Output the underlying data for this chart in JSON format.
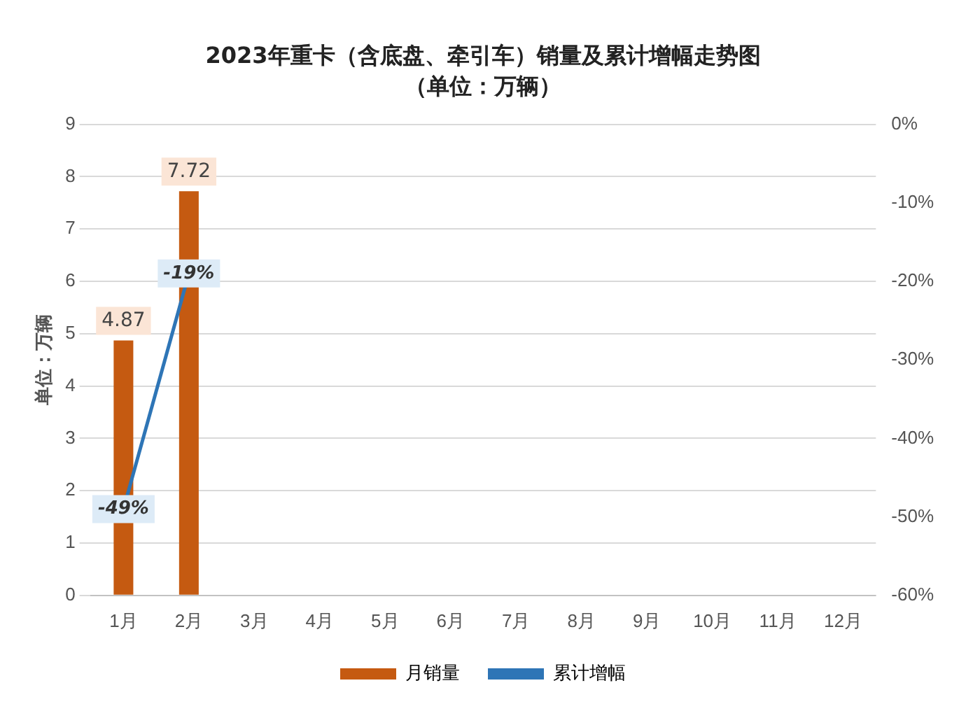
{
  "chart_data": {
    "type": "bar",
    "title": "2023年重卡（含底盘、牵引车）销量及累计增幅走势图",
    "subtitle": "（单位：万辆）",
    "ylabel": "单位：万辆",
    "categories": [
      "1月",
      "2月",
      "3月",
      "4月",
      "5月",
      "6月",
      "7月",
      "8月",
      "9月",
      "10月",
      "11月",
      "12月"
    ],
    "series": [
      {
        "name": "月销量",
        "color": "#c55a11",
        "values": [
          4.87,
          7.72,
          null,
          null,
          null,
          null,
          null,
          null,
          null,
          null,
          null,
          null
        ],
        "value_labels": [
          "4.87",
          "7.72",
          null,
          null,
          null,
          null,
          null,
          null,
          null,
          null,
          null,
          null
        ]
      },
      {
        "name": "累计增幅",
        "type": "line",
        "axis": "y2",
        "color": "#2e75b6",
        "values": [
          -49,
          -19,
          null,
          null,
          null,
          null,
          null,
          null,
          null,
          null,
          null,
          null
        ],
        "value_labels": [
          "-49%",
          "-19%",
          null,
          null,
          null,
          null,
          null,
          null,
          null,
          null,
          null,
          null
        ]
      }
    ],
    "ylim": [
      0,
      9
    ],
    "yticks": [
      0,
      1,
      2,
      3,
      4,
      5,
      6,
      7,
      8,
      9
    ],
    "y2lim": [
      -60,
      0
    ],
    "y2ticks": [
      {
        "value": -60,
        "label": "-60%"
      },
      {
        "value": -50,
        "label": "-50%"
      },
      {
        "value": -40,
        "label": "-40%"
      },
      {
        "value": -30,
        "label": "-30%"
      },
      {
        "value": -20,
        "label": "-20%"
      },
      {
        "value": -10,
        "label": "-10%"
      },
      {
        "value": 0,
        "label": "0%"
      }
    ],
    "grid": "y",
    "legend": "bottom"
  }
}
